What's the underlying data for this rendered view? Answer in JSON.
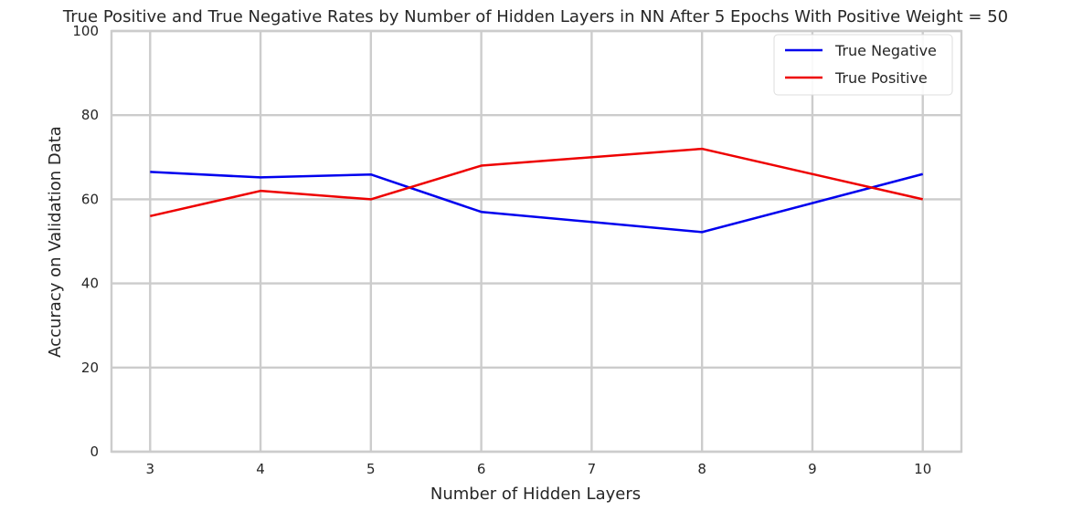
{
  "chart_data": {
    "type": "line",
    "title": "True Positive and True Negative Rates by Number of Hidden Layers in NN After 5 Epochs With Positive Weight = 50",
    "xlabel": "Number of Hidden Layers",
    "ylabel": "Accuracy on Validation Data",
    "x": [
      3,
      4,
      5,
      6,
      8,
      10
    ],
    "xlim": [
      2.65,
      10.35
    ],
    "ylim": [
      0,
      100
    ],
    "xticks": [
      3,
      4,
      5,
      6,
      7,
      8,
      9,
      10
    ],
    "yticks": [
      0,
      20,
      40,
      60,
      80,
      100
    ],
    "grid": true,
    "legend_position": "top-right",
    "series": [
      {
        "name": "True Negative",
        "color": "#0000ee",
        "values": [
          66.5,
          65.2,
          65.9,
          57.0,
          52.2,
          66.0
        ]
      },
      {
        "name": "True Positive",
        "color": "#ee0000",
        "values": [
          56.0,
          62.0,
          60.0,
          68.0,
          72.0,
          60.0
        ]
      }
    ]
  }
}
